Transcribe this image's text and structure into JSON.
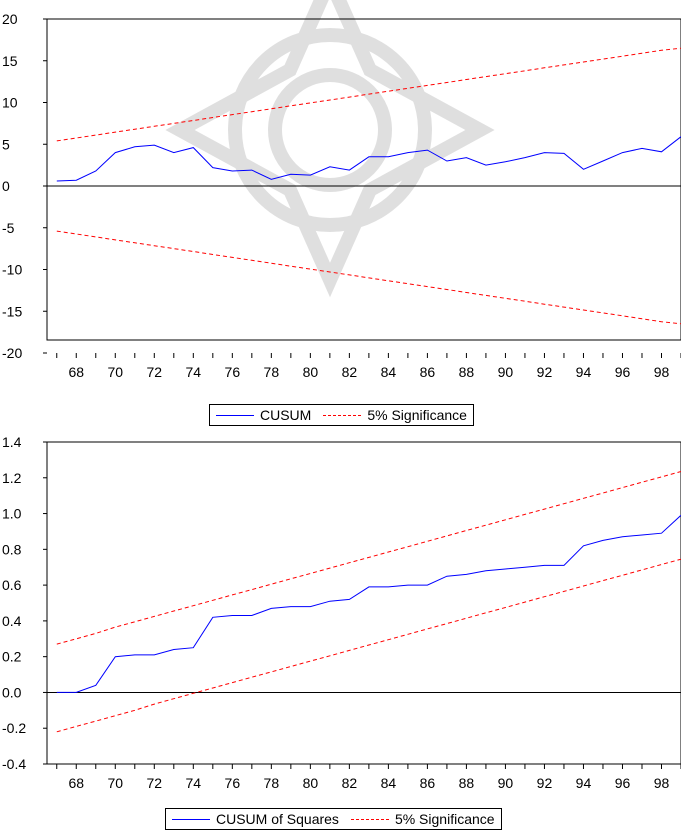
{
  "chart_data": [
    {
      "type": "line",
      "x": [
        1967,
        1968,
        1969,
        1970,
        1971,
        1972,
        1973,
        1974,
        1975,
        1976,
        1977,
        1978,
        1979,
        1980,
        1981,
        1982,
        1983,
        1984,
        1985,
        1986,
        1987,
        1988,
        1989,
        1990,
        1991,
        1992,
        1993,
        1994,
        1995,
        1996,
        1997,
        1998,
        1999
      ],
      "series": [
        {
          "name": "CUSUM",
          "color": "#0000ff",
          "style": "solid",
          "values": [
            0.6,
            0.7,
            1.8,
            4.0,
            4.7,
            4.9,
            4.0,
            4.6,
            2.2,
            1.8,
            1.9,
            0.8,
            1.4,
            1.3,
            2.3,
            1.9,
            3.5,
            3.5,
            4.0,
            4.3,
            3.0,
            3.4,
            2.5,
            2.9,
            3.4,
            4.0,
            3.9,
            2.0,
            3.0,
            4.0,
            4.5,
            4.1,
            5.9
          ]
        },
        {
          "name": "5% Significance",
          "color": "#ff0000",
          "style": "dash",
          "values": [
            5.4,
            5.75,
            6.1,
            6.45,
            6.8,
            7.15,
            7.5,
            7.85,
            8.2,
            8.55,
            8.9,
            9.25,
            9.6,
            9.95,
            10.3,
            10.65,
            11.0,
            11.35,
            11.7,
            12.05,
            12.4,
            12.75,
            13.1,
            13.45,
            13.8,
            14.15,
            14.5,
            14.85,
            15.2,
            15.55,
            15.9,
            16.25,
            16.5
          ]
        },
        {
          "values": [
            -5.4,
            -5.75,
            -6.1,
            -6.45,
            -6.8,
            -7.15,
            -7.5,
            -7.85,
            -8.2,
            -8.55,
            -8.9,
            -9.25,
            -9.6,
            -9.95,
            -10.3,
            -10.65,
            -11.0,
            -11.35,
            -11.7,
            -12.05,
            -12.4,
            -12.75,
            -13.1,
            -13.45,
            -13.8,
            -14.15,
            -14.5,
            -14.85,
            -15.2,
            -15.55,
            -15.9,
            -16.25,
            -16.5
          ],
          "color": "#ff0000",
          "style": "dash"
        }
      ],
      "yticks": [
        "20",
        "15",
        "10",
        "5",
        "0",
        "-5",
        "-10",
        "-15",
        "-20"
      ],
      "ytick_values": [
        20,
        15,
        10,
        5,
        0,
        -5,
        -10,
        -15,
        -20
      ],
      "xticks": [
        "68",
        "70",
        "72",
        "74",
        "76",
        "78",
        "80",
        "82",
        "84",
        "86",
        "88",
        "90",
        "92",
        "94",
        "96",
        "98"
      ],
      "xtick_values": [
        1968,
        1970,
        1972,
        1974,
        1976,
        1978,
        1980,
        1982,
        1984,
        1986,
        1988,
        1990,
        1992,
        1994,
        1996,
        1998
      ],
      "ylim": [
        -20,
        20
      ],
      "xlim": [
        1966.5,
        1999
      ],
      "zero_line": true,
      "legend": {
        "placement": "bottom-center",
        "entries": [
          "CUSUM",
          "5% Significance"
        ]
      }
    },
    {
      "type": "line",
      "x": [
        1967,
        1968,
        1969,
        1970,
        1971,
        1972,
        1973,
        1974,
        1975,
        1976,
        1977,
        1978,
        1979,
        1980,
        1981,
        1982,
        1983,
        1984,
        1985,
        1986,
        1987,
        1988,
        1989,
        1990,
        1991,
        1992,
        1993,
        1994,
        1995,
        1996,
        1997,
        1998,
        1999
      ],
      "series": [
        {
          "name": "CUSUM of Squares",
          "color": "#0000ff",
          "style": "solid",
          "values": [
            0.0,
            0.0,
            0.04,
            0.2,
            0.21,
            0.21,
            0.24,
            0.25,
            0.42,
            0.43,
            0.43,
            0.47,
            0.48,
            0.48,
            0.51,
            0.52,
            0.59,
            0.59,
            0.6,
            0.6,
            0.65,
            0.66,
            0.68,
            0.69,
            0.7,
            0.71,
            0.71,
            0.82,
            0.85,
            0.87,
            0.88,
            0.89,
            0.99
          ]
        },
        {
          "name": "5% Significance",
          "color": "#ff0000",
          "style": "dash",
          "values": [
            0.27,
            0.3,
            0.33,
            0.365,
            0.395,
            0.425,
            0.455,
            0.485,
            0.515,
            0.545,
            0.575,
            0.605,
            0.635,
            0.665,
            0.695,
            0.725,
            0.755,
            0.785,
            0.815,
            0.845,
            0.875,
            0.905,
            0.935,
            0.965,
            0.995,
            1.025,
            1.055,
            1.085,
            1.115,
            1.145,
            1.175,
            1.205,
            1.235
          ]
        },
        {
          "values": [
            -0.22,
            -0.19,
            -0.16,
            -0.13,
            -0.1,
            -0.065,
            -0.035,
            -0.005,
            0.025,
            0.055,
            0.085,
            0.115,
            0.145,
            0.175,
            0.205,
            0.235,
            0.265,
            0.295,
            0.325,
            0.355,
            0.385,
            0.415,
            0.445,
            0.475,
            0.505,
            0.535,
            0.565,
            0.595,
            0.625,
            0.655,
            0.685,
            0.715,
            0.745
          ],
          "color": "#ff0000",
          "style": "dash"
        }
      ],
      "yticks": [
        "1.4",
        "1.2",
        "1.0",
        "0.8",
        "0.6",
        "0.4",
        "0.2",
        "0.0",
        "-0.2",
        "-0.4"
      ],
      "ytick_values": [
        1.4,
        1.2,
        1.0,
        0.8,
        0.6,
        0.4,
        0.2,
        0.0,
        -0.2,
        -0.4
      ],
      "xticks": [
        "68",
        "70",
        "72",
        "74",
        "76",
        "78",
        "80",
        "82",
        "84",
        "86",
        "88",
        "90",
        "92",
        "94",
        "96",
        "98"
      ],
      "xtick_values": [
        1968,
        1970,
        1972,
        1974,
        1976,
        1978,
        1980,
        1982,
        1984,
        1986,
        1988,
        1990,
        1992,
        1994,
        1996,
        1998
      ],
      "ylim": [
        -0.4,
        1.4
      ],
      "xlim": [
        1966.5,
        1999
      ],
      "zero_line": true,
      "legend": {
        "placement": "bottom-center",
        "entries": [
          "CUSUM of Squares",
          "5% Significance"
        ]
      }
    }
  ]
}
